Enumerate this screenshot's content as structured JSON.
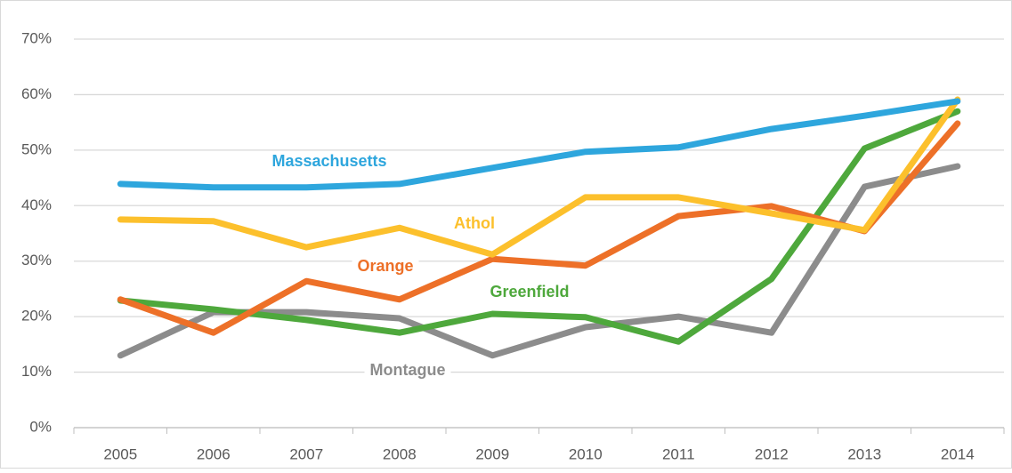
{
  "chart_data": {
    "type": "line",
    "categories": [
      "2005",
      "2006",
      "2007",
      "2008",
      "2009",
      "2010",
      "2011",
      "2012",
      "2013",
      "2014"
    ],
    "series": [
      {
        "name": "Montague",
        "color": "#8c8c8c",
        "values": [
          13,
          20.8,
          20.8,
          19.7,
          13,
          18.1,
          20,
          17.1,
          43.4,
          47.1
        ]
      },
      {
        "name": "Greenfield",
        "color": "#4ea83c",
        "values": [
          22.9,
          21.3,
          19.4,
          17.1,
          20.5,
          19.9,
          15.5,
          26.8,
          50.3,
          57
        ]
      },
      {
        "name": "Orange",
        "color": "#ed7028",
        "values": [
          23.1,
          17.1,
          26.4,
          23.1,
          30.4,
          29.2,
          38.1,
          39.9,
          35.4,
          54.8
        ]
      },
      {
        "name": "Athol",
        "color": "#fcc02c",
        "values": [
          37.5,
          37.2,
          32.5,
          36,
          31.2,
          41.5,
          41.5,
          38.6,
          35.6,
          59.1
        ]
      },
      {
        "name": "Massachusetts",
        "color": "#2ea6dd",
        "values": [
          43.9,
          43.3,
          43.3,
          43.9,
          46.8,
          49.7,
          50.5,
          53.8,
          56.2,
          58.8
        ]
      }
    ],
    "ylim": [
      0,
      70
    ],
    "yticks": [
      {
        "value": 0,
        "label": "0%"
      },
      {
        "value": 10,
        "label": "10%"
      },
      {
        "value": 20,
        "label": "20%"
      },
      {
        "value": 30,
        "label": "30%"
      },
      {
        "value": 40,
        "label": "40%"
      },
      {
        "value": 50,
        "label": "50%"
      },
      {
        "value": 60,
        "label": "60%"
      },
      {
        "value": 70,
        "label": "70%"
      }
    ],
    "grid": true
  }
}
